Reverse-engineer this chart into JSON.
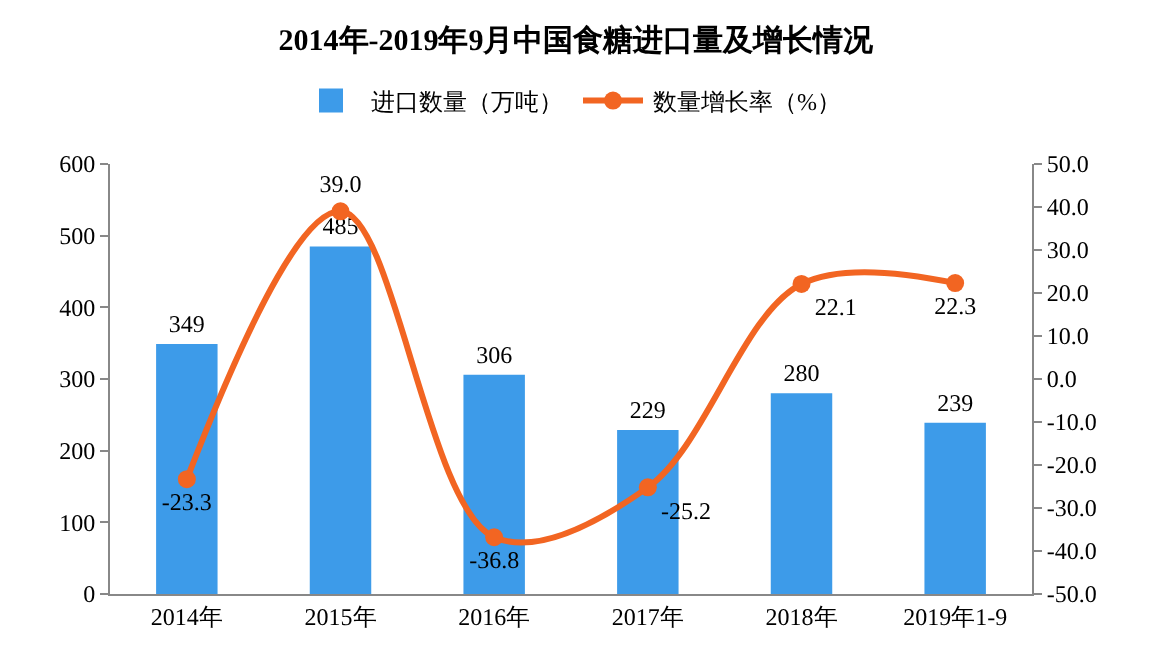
{
  "chart_data": {
    "type": "bar",
    "title": "2014年-2019年9月中国食糖进口量及增长情况",
    "categories": [
      "2014年",
      "2015年",
      "2016年",
      "2017年",
      "2018年",
      "2019年1-9"
    ],
    "series": [
      {
        "name": "进口数量（万吨）",
        "color": "#3d9be9",
        "values": [
          349,
          485,
          306,
          229,
          280,
          239
        ]
      },
      {
        "name": "数量增长率（%）",
        "type": "line",
        "axis": "y2",
        "color": "#f26522",
        "values": [
          -23.3,
          39.0,
          -36.8,
          -25.2,
          22.1,
          22.3
        ],
        "value_labels": [
          "-23.3",
          "39.0",
          "-36.8",
          "-25.2",
          "22.1",
          "22.3"
        ]
      }
    ],
    "ylim": [
      0,
      600
    ],
    "yticks": [
      0,
      100,
      200,
      300,
      400,
      500,
      600
    ],
    "y2lim": [
      -50,
      50
    ],
    "y2ticks": [
      {
        "value": -50,
        "label": "-50.0"
      },
      {
        "value": -40,
        "label": "-40.0"
      },
      {
        "value": -30,
        "label": "-30.0"
      },
      {
        "value": -20,
        "label": "-20.0"
      },
      {
        "value": -10,
        "label": "-10.0"
      },
      {
        "value": 0,
        "label": "0.0"
      },
      {
        "value": 10,
        "label": "10.0"
      },
      {
        "value": 20,
        "label": "20.0"
      },
      {
        "value": 30,
        "label": "30.0"
      },
      {
        "value": 40,
        "label": "40.0"
      },
      {
        "value": 50,
        "label": "50.0"
      }
    ],
    "data_labels": true,
    "legend": "top",
    "marker": "circle"
  }
}
